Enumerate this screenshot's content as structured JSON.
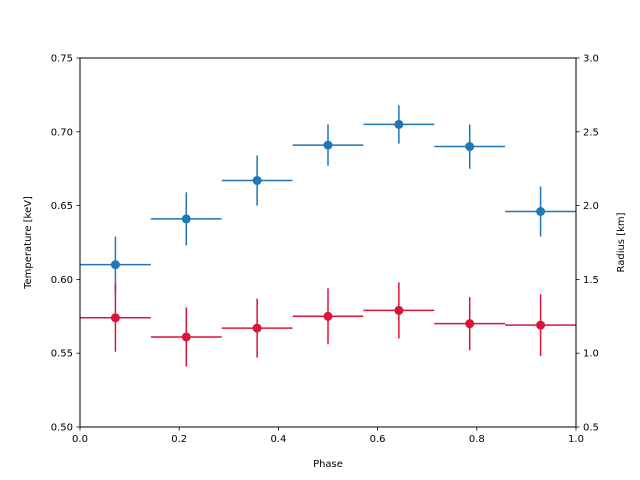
{
  "chart_data": {
    "type": "scatter",
    "title": "",
    "xlabel": "Phase",
    "ylabel": "Temperature [keV]",
    "y2label": "Radius [km]",
    "xlim": [
      0,
      1
    ],
    "ylim": [
      0.5,
      0.75
    ],
    "y2lim": [
      0.5,
      3.0
    ],
    "grid": false,
    "legend": "none",
    "x_ticks": [
      "0.0",
      "0.2",
      "0.4",
      "0.6",
      "0.8",
      "1.0"
    ],
    "y_ticks": [
      "0.50",
      "0.55",
      "0.60",
      "0.65",
      "0.70",
      "0.75"
    ],
    "y2_ticks": [
      "0.5",
      "1.0",
      "1.5",
      "2.0",
      "2.5",
      "3.0"
    ],
    "series": [
      {
        "axis": "left",
        "color": "#1f77b4",
        "x": [
          0.0714,
          0.2143,
          0.3571,
          0.5,
          0.6429,
          0.7857,
          0.9286
        ],
        "x_err": 0.0714,
        "y": [
          0.61,
          0.641,
          0.667,
          0.691,
          0.705,
          0.69,
          0.646
        ],
        "y_err": [
          0.019,
          0.018,
          0.017,
          0.014,
          0.013,
          0.015,
          0.017
        ]
      },
      {
        "axis": "right",
        "color": "#dc143c",
        "x": [
          0.0714,
          0.2143,
          0.3571,
          0.5,
          0.6429,
          0.7857,
          0.9286
        ],
        "x_err": 0.0714,
        "y": [
          1.24,
          1.11,
          1.17,
          1.25,
          1.29,
          1.2,
          1.19
        ],
        "y_err": [
          0.23,
          0.2,
          0.2,
          0.19,
          0.19,
          0.18,
          0.21
        ]
      }
    ]
  }
}
